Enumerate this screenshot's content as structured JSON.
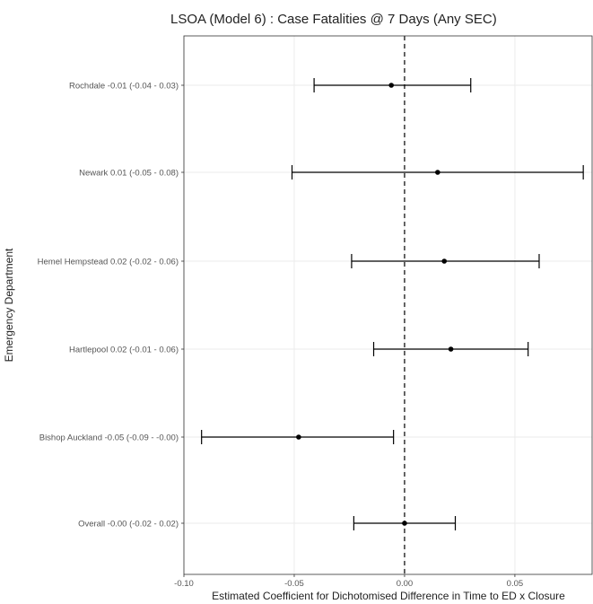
{
  "chart_data": {
    "type": "forest",
    "title": "LSOA (Model 6) : Case Fatalities @ 7 Days (Any SEC)",
    "xlabel": "Estimated Coefficient for Dichotomised Difference in Time to ED x Closure",
    "ylabel": "Emergency Department",
    "xlim": [
      -0.1,
      0.085
    ],
    "x_ticks": [
      {
        "value": -0.1,
        "label": "-0.10"
      },
      {
        "value": -0.05,
        "label": "-0.05"
      },
      {
        "value": 0.0,
        "label": "0.00"
      },
      {
        "value": 0.05,
        "label": "0.05"
      }
    ],
    "reference_line": 0,
    "grid": true,
    "rows": [
      {
        "label": "Rochdale -0.01 (-0.04 - 0.03)",
        "estimate": -0.006,
        "lower": -0.041,
        "upper": 0.03
      },
      {
        "label": "Newark 0.01 (-0.05 - 0.08)",
        "estimate": 0.015,
        "lower": -0.051,
        "upper": 0.081
      },
      {
        "label": "Hemel Hempstead 0.02 (-0.02 - 0.06)",
        "estimate": 0.018,
        "lower": -0.024,
        "upper": 0.061
      },
      {
        "label": "Hartlepool 0.02 (-0.01 - 0.06)",
        "estimate": 0.021,
        "lower": -0.014,
        "upper": 0.056
      },
      {
        "label": "Bishop Auckland -0.05 (-0.09 - -0.00)",
        "estimate": -0.048,
        "lower": -0.092,
        "upper": -0.005
      },
      {
        "label": "Overall -0.00 (-0.02 - 0.02)",
        "estimate": 0.0,
        "lower": -0.023,
        "upper": 0.023
      }
    ]
  }
}
